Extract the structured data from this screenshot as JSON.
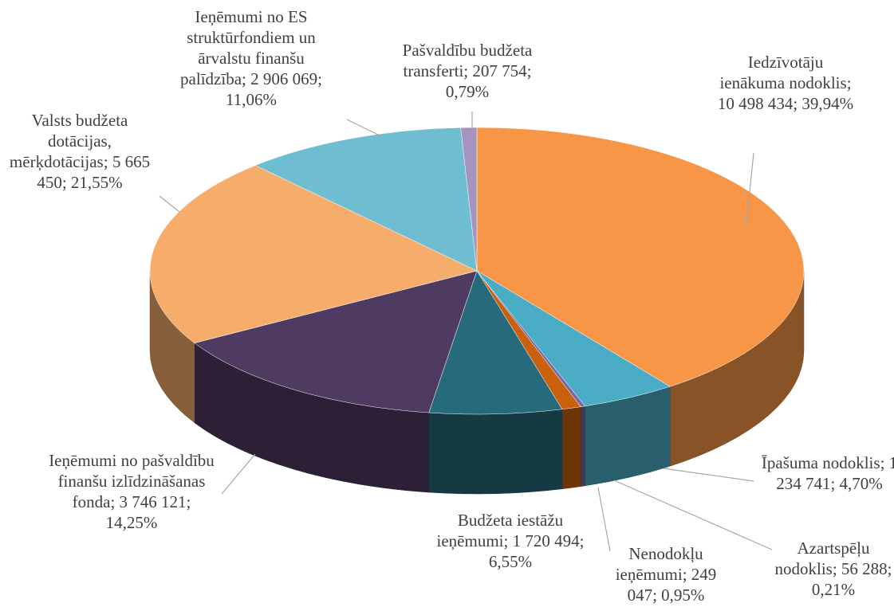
{
  "chart_data": {
    "type": "pie3d",
    "categories": [
      "Iedzīvotāju ienākuma nodoklis",
      "Īpašuma nodoklis",
      "Azartspēļu nodoklis",
      "Nenodokļu ieņēmumi",
      "Budžeta iestāžu ieņēmumi",
      "Ieņēmumi no pašvaldību finanšu izlīdzināšanas fonda",
      "Valsts budžeta dotācijas, mērķdotācijas",
      "Ieņēmumi no ES struktūrfondiem un ārvalstu finanšu palīdzība",
      "Pašvaldību budžeta transferti"
    ],
    "values": [
      10498434,
      1234741,
      56288,
      249047,
      1720494,
      3746121,
      5665450,
      2906069,
      207754
    ],
    "value_labels": [
      "10 498 434",
      "1 234 741",
      "56 288",
      "249 047",
      "1 720 494",
      "3 746 121",
      "5 665 450",
      "2 906 069",
      "207 754"
    ],
    "percentages": [
      39.94,
      4.7,
      0.21,
      0.95,
      6.55,
      14.25,
      21.55,
      11.06,
      0.79
    ],
    "percentage_labels": [
      "39,94%",
      "4,70%",
      "0,21%",
      "0,95%",
      "6,55%",
      "14,25%",
      "21,55%",
      "11,06%",
      "0,79%"
    ],
    "label_separator": "; ",
    "colors": [
      "#f79646",
      "#4bacc6",
      "#8064a2",
      "#c8600e",
      "#276a7c",
      "#4f3b62",
      "#f6ad6c",
      "#6fbdd0",
      "#a495c0"
    ]
  }
}
